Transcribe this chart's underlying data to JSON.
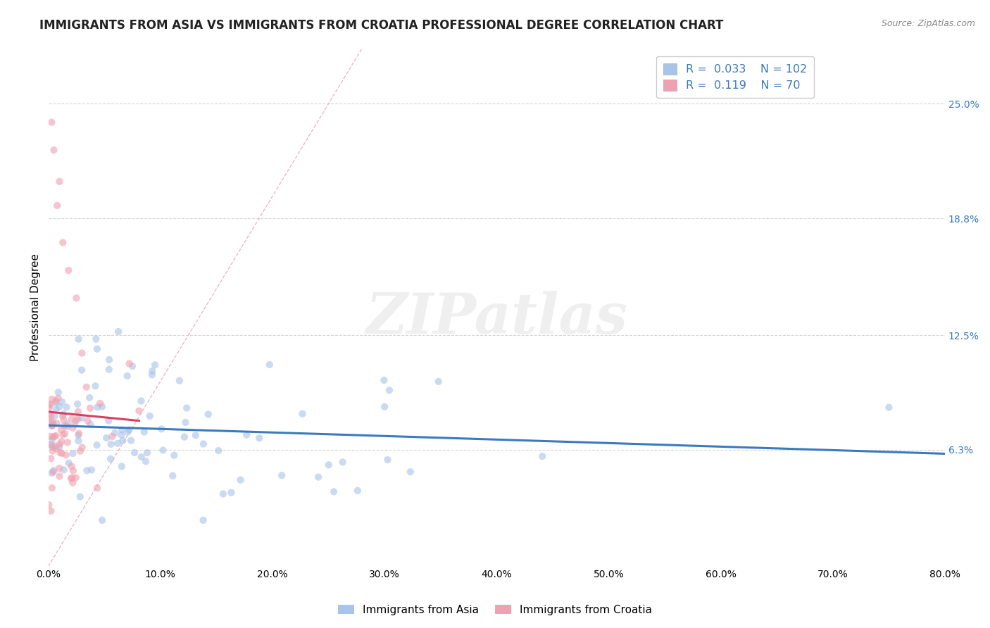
{
  "title": "IMMIGRANTS FROM ASIA VS IMMIGRANTS FROM CROATIA PROFESSIONAL DEGREE CORRELATION CHART",
  "source_text": "Source: ZipAtlas.com",
  "ylabel": "Professional Degree",
  "watermark": "ZIPatlas",
  "legend_entries": [
    {
      "label": "Immigrants from Asia",
      "R": 0.033,
      "N": 102,
      "dot_color": "#a8c4e8",
      "line_color": "#3a7abf"
    },
    {
      "label": "Immigrants from Croatia",
      "R": 0.119,
      "N": 70,
      "dot_color": "#f0a0b0",
      "line_color": "#d94060"
    }
  ],
  "xlim": [
    0.0,
    80.0
  ],
  "ylim": [
    0.0,
    28.0
  ],
  "ytick_vals": [
    6.3,
    12.5,
    18.8,
    25.0
  ],
  "ytick_labels": [
    "6.3%",
    "12.5%",
    "18.8%",
    "25.0%"
  ],
  "xtick_vals": [
    0,
    10,
    20,
    30,
    40,
    50,
    60,
    70,
    80
  ],
  "xtick_labels": [
    "0.0%",
    "10.0%",
    "20.0%",
    "30.0%",
    "40.0%",
    "50.0%",
    "60.0%",
    "70.0%",
    "80.0%"
  ],
  "background_color": "#ffffff",
  "grid_color": "#cccccc",
  "diagonal_color": "#e8b0c0",
  "title_fontsize": 12,
  "axis_label_fontsize": 11,
  "tick_fontsize": 10,
  "dot_size": 55,
  "dot_alpha": 0.6,
  "right_ytick_color": "#3a7abf",
  "legend_text_color": "#3a7abf"
}
